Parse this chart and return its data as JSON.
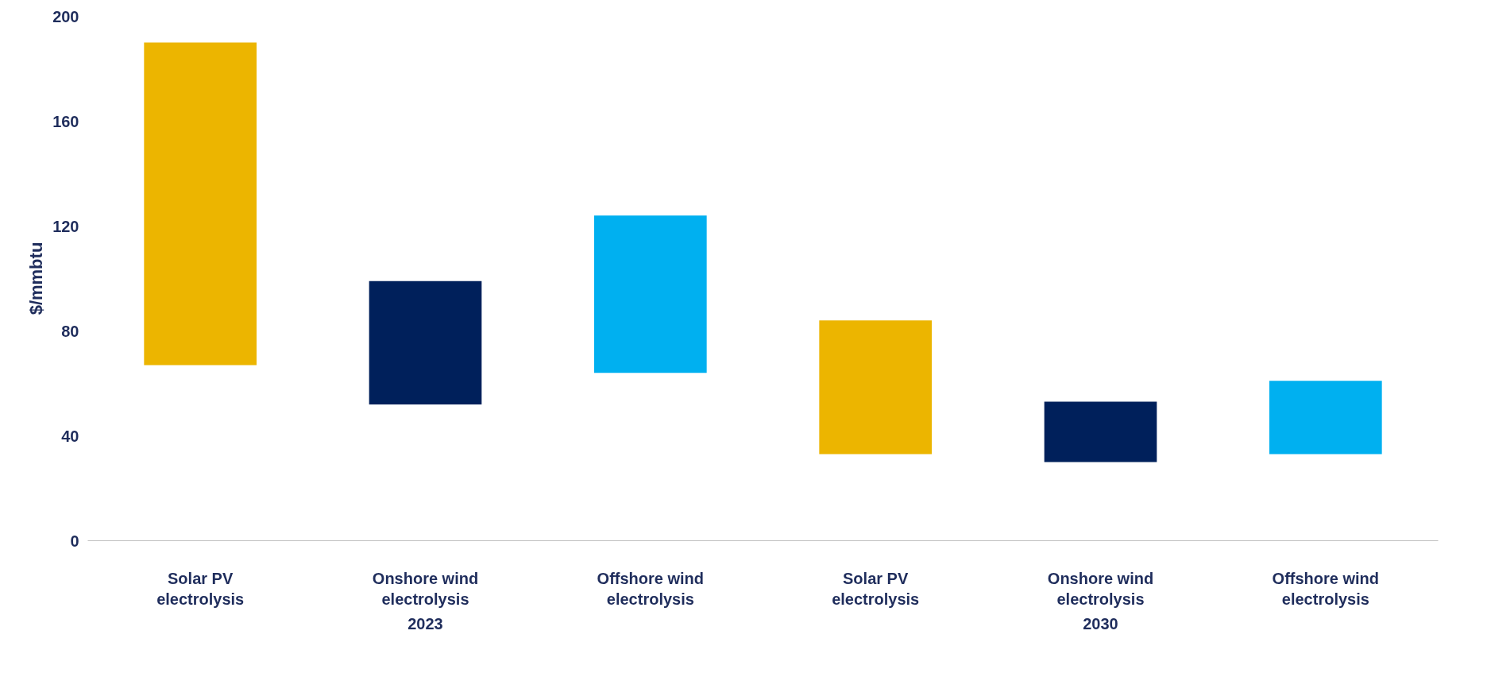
{
  "chart_data": {
    "type": "bar",
    "ylabel": "$/mmbtu",
    "categories": [
      "Solar PV electrolysis",
      "Onshore wind electrolysis",
      "Offshore wind electrolysis",
      "Solar PV electrolysis",
      "Onshore wind electrolysis",
      "Offshore wind electrolysis"
    ],
    "base": [
      67,
      52,
      64,
      33,
      30,
      33
    ],
    "values": [
      123,
      47,
      60,
      51,
      23,
      28
    ],
    "colors": [
      "#ecb500",
      "#00205b",
      "#00b0f0",
      "#ecb500",
      "#00205b",
      "#00b0f0"
    ],
    "ylim": [
      0,
      200
    ],
    "yticks": [
      0,
      40,
      80,
      120,
      160,
      200
    ],
    "annotations": [
      "2023",
      "2030"
    ],
    "grid": false
  }
}
